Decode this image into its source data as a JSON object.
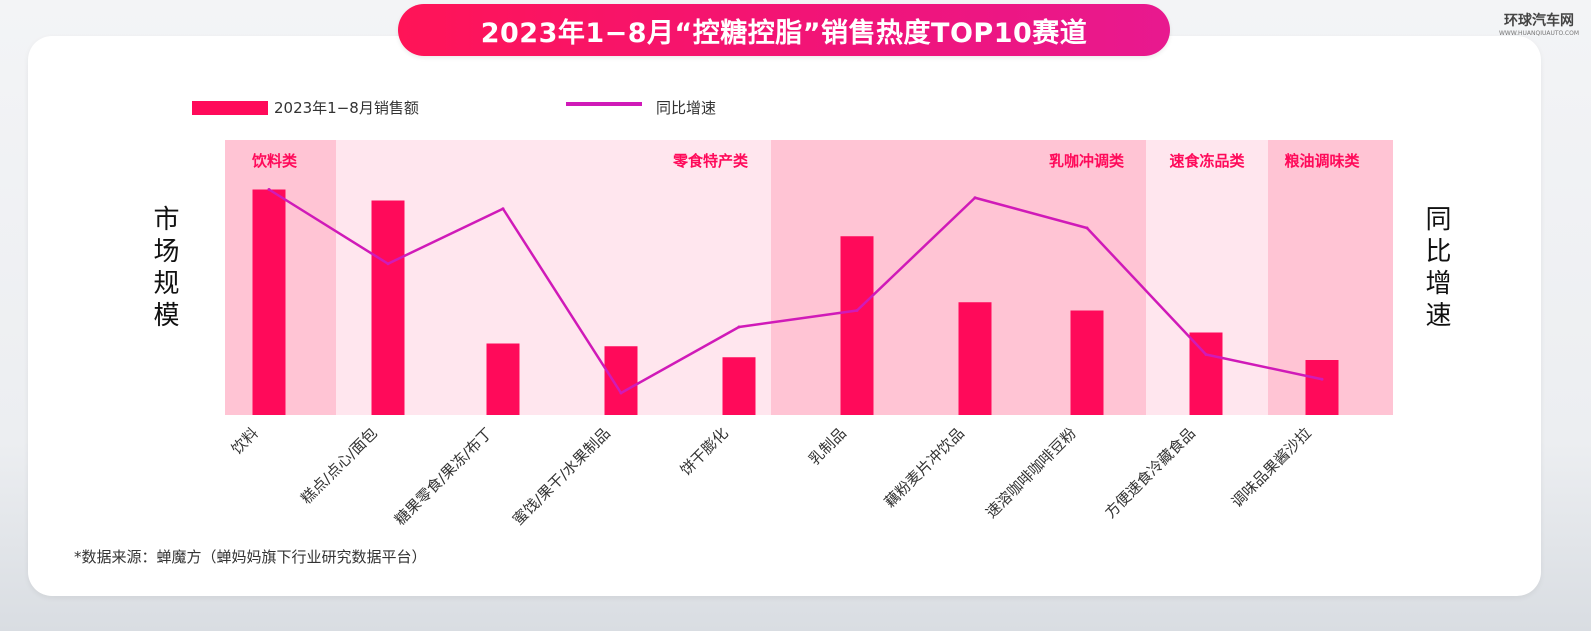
{
  "title": "2023年1−8月“控糖控脂”销售热度TOP10赛道",
  "watermark": {
    "main": "环球汽车网",
    "sub": "WWW.HUANQIUAUTO.COM"
  },
  "legend": {
    "bar_label": "2023年1−8月销售额",
    "line_label": "同比增速"
  },
  "axis": {
    "left_title": "市场规模",
    "right_title": "同比增速"
  },
  "source": "*数据来源：蝉魔方（蝉妈妈旗下行业研究数据平台）",
  "colors": {
    "bar": "#ff0a5a",
    "line": "#d01ab8",
    "accent": "#ff0a5a",
    "band_dark": "#ffc4d4",
    "band_light": "#ffe6ee"
  },
  "chart_data": {
    "type": "bar",
    "categories": [
      "饮料",
      "糕点/点心/面包",
      "糖果零食/果冻/布丁",
      "蜜饯/果干/水果制品",
      "饼干膨化",
      "乳制品",
      "藕粉麦片冲饮品",
      "速溶咖啡咖啡豆粉",
      "方便速食冷藏食品",
      "调味品果酱沙拉"
    ],
    "series": [
      {
        "name": "2023年1−8月销售额",
        "type": "bar",
        "axis": "left",
        "values": [
          82,
          78,
          26,
          25,
          21,
          65,
          41,
          38,
          30,
          20
        ]
      },
      {
        "name": "同比增速",
        "type": "line",
        "axis": "right",
        "values": [
          82,
          55,
          75,
          8,
          32,
          38,
          79,
          68,
          22,
          13
        ]
      }
    ],
    "groups": [
      {
        "label": "饮料类",
        "start": 0,
        "end": 0,
        "shade": "dark"
      },
      {
        "label": "零食特产类",
        "start": 1,
        "end": 4,
        "shade": "light"
      },
      {
        "label": "乳咖冲调类",
        "start": 5,
        "end": 7,
        "shade": "dark"
      },
      {
        "label": "速食冻品类",
        "start": 8,
        "end": 8,
        "shade": "light"
      },
      {
        "label": "粮油调味类",
        "start": 9,
        "end": 9,
        "shade": "dark"
      }
    ],
    "ylim_left": [
      0,
      100
    ],
    "ylim_right": [
      0,
      100
    ],
    "left_axis_label": "市场规模",
    "right_axis_label": "同比增速",
    "legend_position": "top-left",
    "grid": false
  }
}
